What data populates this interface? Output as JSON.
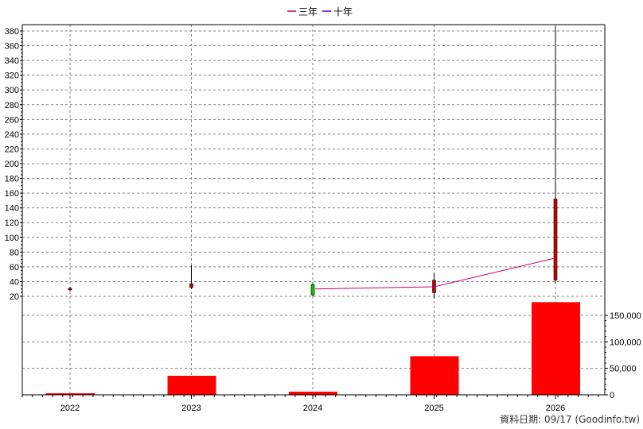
{
  "legend": [
    {
      "label": "三年",
      "color": "#cc0066"
    },
    {
      "label": "十年",
      "color": "#6600cc"
    }
  ],
  "footer": {
    "prefix": "資料日期: ",
    "date": "09/17",
    "source": "(Goodinfo.tw)"
  },
  "colors": {
    "grid": "#808080",
    "axis": "#000000",
    "up_candle": "#00cc00",
    "down_candle": "#cc0000",
    "volume_bar": "#ff0000",
    "wick": "#000000"
  },
  "chart_data": {
    "type": "candlestick",
    "categories": [
      "2022",
      "2023",
      "2024",
      "2025",
      "2026"
    ],
    "price_axis": {
      "min": 20,
      "max": 380,
      "ticks": [
        20,
        40,
        60,
        80,
        100,
        120,
        140,
        160,
        180,
        200,
        220,
        240,
        260,
        280,
        300,
        320,
        340,
        360,
        380
      ]
    },
    "volume_axis": {
      "min": 0,
      "max": 150000,
      "ticks": [
        0,
        50000,
        100000,
        150000
      ],
      "tick_labels": [
        "0",
        "50,000",
        "100,000",
        "150,000"
      ]
    },
    "candles": [
      {
        "year": "2022",
        "open": 31,
        "high": 33,
        "low": 27,
        "close": 29
      },
      {
        "year": "2023",
        "open": 37,
        "high": 62,
        "low": 30,
        "close": 32
      },
      {
        "year": "2024",
        "open": 22,
        "high": 38,
        "low": 20,
        "close": 36
      },
      {
        "year": "2025",
        "open": 42,
        "high": 52,
        "low": 17,
        "close": 25
      },
      {
        "year": "2026",
        "open": 152,
        "high": 386,
        "low": 38,
        "close": 42
      }
    ],
    "volume": [
      3000,
      36000,
      6000,
      73000,
      175000
    ],
    "series": [
      {
        "name": "三年",
        "x": [
          "2024",
          "2025",
          "2026"
        ],
        "values": [
          30,
          33,
          72
        ]
      },
      {
        "name": "十年",
        "x": [],
        "values": []
      }
    ],
    "grid": true,
    "legend_position": "top-center"
  }
}
